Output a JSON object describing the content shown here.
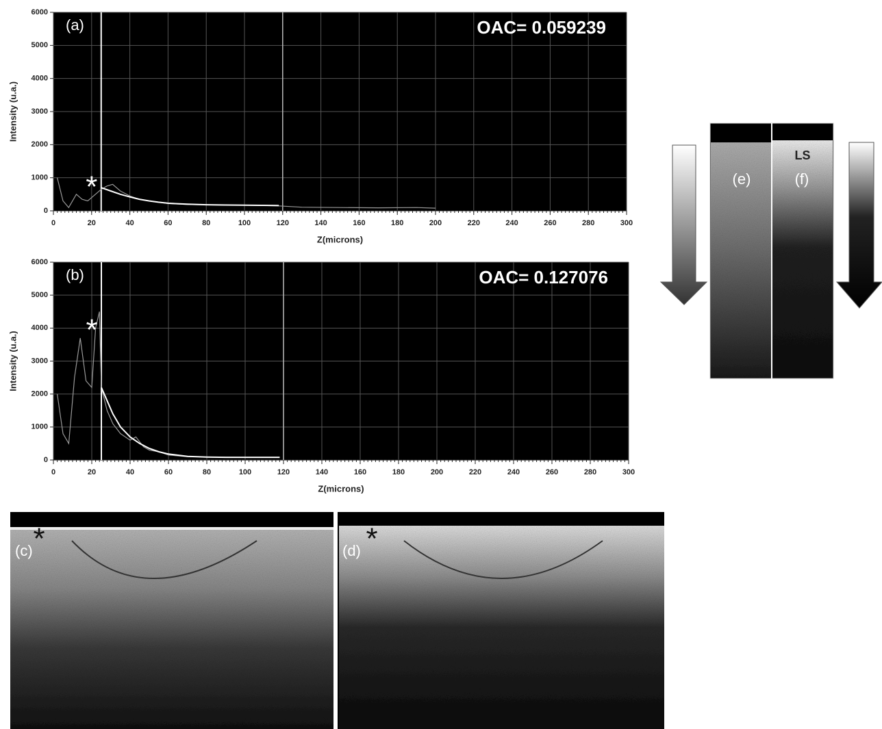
{
  "chart_data": [
    {
      "type": "line",
      "panel_label": "(a)",
      "annotation": "OAC= 0.059239",
      "marker": "*",
      "xlabel": "Z(microns)",
      "ylabel": "Intensity (u.a.)",
      "xlim": [
        0,
        300
      ],
      "xticks": [
        0,
        20,
        40,
        60,
        80,
        100,
        120,
        140,
        160,
        180,
        200,
        220,
        240,
        260,
        280,
        300
      ],
      "ylim": [
        0,
        6000
      ],
      "yticks": [
        0,
        1000,
        2000,
        3000,
        4000,
        5000,
        6000
      ],
      "grid": true,
      "vlines": [
        25,
        120
      ],
      "series": [
        {
          "color": "#9a9a9a",
          "x": [
            2,
            5,
            8,
            12,
            15,
            18,
            22,
            25,
            28,
            31,
            35,
            40,
            45,
            50,
            60,
            70,
            80,
            90,
            100,
            110,
            118,
            130,
            150,
            170,
            190,
            200
          ],
          "values": [
            1000,
            300,
            100,
            500,
            350,
            300,
            500,
            650,
            750,
            800,
            600,
            450,
            350,
            300,
            220,
            190,
            180,
            170,
            170,
            160,
            150,
            110,
            100,
            90,
            100,
            80
          ]
        },
        {
          "color": "#ffffff",
          "x": [
            25,
            30,
            35,
            40,
            45,
            50,
            55,
            60,
            70,
            80,
            90,
            100,
            110,
            118
          ],
          "values": [
            700,
            600,
            500,
            420,
            350,
            300,
            260,
            230,
            200,
            185,
            175,
            170,
            165,
            160
          ]
        }
      ]
    },
    {
      "type": "line",
      "panel_label": "(b)",
      "annotation": "OAC= 0.127076",
      "marker": "*",
      "xlabel": "Z(microns)",
      "ylabel": "Intensity (u.a.)",
      "xlim": [
        0,
        300
      ],
      "xticks": [
        0,
        20,
        40,
        60,
        80,
        100,
        120,
        140,
        160,
        180,
        200,
        220,
        240,
        260,
        280,
        300
      ],
      "ylim": [
        0,
        6000
      ],
      "yticks": [
        0,
        1000,
        2000,
        3000,
        4000,
        5000,
        6000
      ],
      "grid": true,
      "vlines": [
        25,
        120
      ],
      "series": [
        {
          "color": "#9a9a9a",
          "x": [
            2,
            5,
            8,
            11,
            14,
            17,
            20,
            22,
            24,
            25,
            28,
            31,
            35,
            40,
            43,
            47,
            50,
            55,
            60,
            70,
            80,
            100,
            118
          ],
          "values": [
            2000,
            800,
            500,
            2500,
            3700,
            2400,
            2200,
            4000,
            4500,
            2200,
            1500,
            1100,
            800,
            600,
            700,
            400,
            300,
            250,
            150,
            100,
            90,
            80,
            80
          ]
        },
        {
          "color": "#ffffff",
          "x": [
            25,
            28,
            31,
            35,
            40,
            45,
            50,
            55,
            60,
            70,
            80,
            90,
            100,
            118
          ],
          "values": [
            2200,
            1800,
            1400,
            1000,
            700,
            500,
            350,
            250,
            180,
            110,
            90,
            80,
            80,
            80
          ]
        }
      ]
    }
  ],
  "image_panels": [
    {
      "label": "(c)",
      "marker": "*"
    },
    {
      "label": "(d)",
      "marker": "*"
    },
    {
      "label": "(e)"
    },
    {
      "label": "(f)",
      "annotation": "LS"
    }
  ]
}
